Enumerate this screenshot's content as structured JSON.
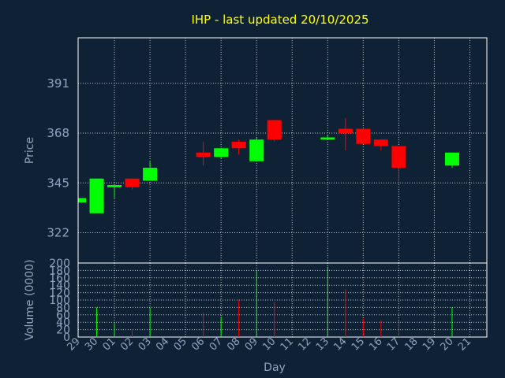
{
  "chart_data": {
    "type": "candlestick",
    "title": "IHP - last updated 20/10/2025",
    "xlabel": "Day",
    "price_panel": {
      "ylabel": "Price",
      "yticks": [
        322,
        345,
        368,
        391
      ],
      "ylim": [
        308,
        412
      ]
    },
    "volume_panel": {
      "ylabel": "Volume (0000)",
      "yticks": [
        0,
        20,
        40,
        60,
        80,
        100,
        120,
        140,
        160,
        180,
        200
      ],
      "ylim": [
        0,
        200
      ]
    },
    "day_labels": [
      "29",
      "30",
      "01",
      "02",
      "03",
      "04",
      "05",
      "06",
      "07",
      "08",
      "09",
      "10",
      "11",
      "12",
      "13",
      "14",
      "15",
      "16",
      "17",
      "18",
      "19",
      "20",
      "21"
    ],
    "colors": {
      "up": "#00ff00",
      "down": "#ff0000",
      "grid": "#ffffff",
      "axis": "#8ea4c0"
    },
    "candles": [
      {
        "day": "29",
        "open": 336,
        "high": 338,
        "low": 336,
        "close": 338,
        "volume": 0
      },
      {
        "day": "30",
        "open": 331,
        "high": 347,
        "low": 331,
        "close": 347,
        "volume": 80
      },
      {
        "day": "01",
        "open": 343,
        "high": 344,
        "low": 338,
        "close": 344,
        "volume": 38
      },
      {
        "day": "02",
        "open": 347,
        "high": 347,
        "low": 342,
        "close": 343,
        "volume": 18
      },
      {
        "day": "03",
        "open": 346,
        "high": 355,
        "low": 346,
        "close": 352,
        "volume": 80
      },
      {
        "day": "06",
        "open": 359,
        "high": 364,
        "low": 353,
        "close": 357,
        "volume": 65
      },
      {
        "day": "07",
        "open": 357,
        "high": 361,
        "low": 356,
        "close": 361,
        "volume": 55
      },
      {
        "day": "08",
        "open": 364,
        "high": 365,
        "low": 358,
        "close": 361,
        "volume": 100
      },
      {
        "day": "09",
        "open": 355,
        "high": 366,
        "low": 355,
        "close": 365,
        "volume": 180
      },
      {
        "day": "10",
        "open": 374,
        "high": 374,
        "low": 364,
        "close": 365,
        "volume": 95
      },
      {
        "day": "13",
        "open": 365,
        "high": 367,
        "low": 365,
        "close": 366,
        "volume": 190
      },
      {
        "day": "14",
        "open": 370,
        "high": 375,
        "low": 360,
        "close": 368,
        "volume": 130
      },
      {
        "day": "15",
        "open": 370,
        "high": 370,
        "low": 363,
        "close": 363,
        "volume": 50
      },
      {
        "day": "16",
        "open": 365,
        "high": 365,
        "low": 360,
        "close": 362,
        "volume": 45
      },
      {
        "day": "17",
        "open": 362,
        "high": 362,
        "low": 345,
        "close": 352,
        "volume": 45
      },
      {
        "day": "20",
        "open": 353,
        "high": 359,
        "low": 352,
        "close": 359,
        "volume": 80
      }
    ]
  }
}
